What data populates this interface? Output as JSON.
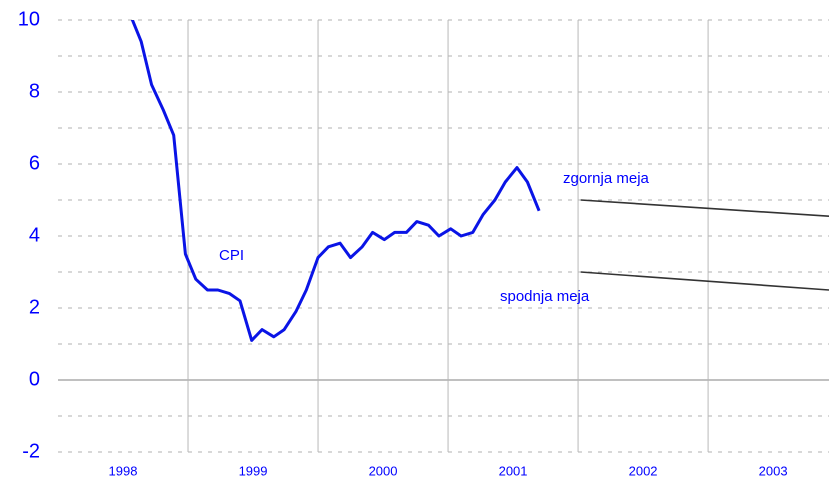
{
  "chart_data": {
    "type": "line",
    "xlim": [
      1998,
      2003.93
    ],
    "ylim": [
      -2,
      10
    ],
    "yticks": [
      -2,
      0,
      2,
      4,
      6,
      8,
      10
    ],
    "yminorticks": [
      -1,
      1,
      3,
      5,
      7,
      9
    ],
    "xgrid": [
      1999,
      2000,
      2001,
      2002,
      2003
    ],
    "xticks": [
      {
        "value": 1998.5,
        "label": "1998"
      },
      {
        "value": 1999.5,
        "label": "1999"
      },
      {
        "value": 2000.5,
        "label": "2000"
      },
      {
        "value": 2001.5,
        "label": "2001"
      },
      {
        "value": 2002.5,
        "label": "2002"
      },
      {
        "value": 2003.5,
        "label": "2003"
      }
    ],
    "annotations": [
      "CPI",
      "zgornja meja",
      "spodnja meja"
    ],
    "series": [
      {
        "name": "CPI",
        "color": "#0a14e6",
        "x": [
          1998.55,
          1998.64,
          1998.72,
          1998.81,
          1998.89,
          1998.98,
          1999.06,
          1999.15,
          1999.23,
          1999.32,
          1999.4,
          1999.49,
          1999.57,
          1999.66,
          1999.74,
          1999.83,
          1999.91,
          2000.0,
          2000.08,
          2000.17,
          2000.25,
          2000.34,
          2000.42,
          2000.51,
          2000.59,
          2000.68,
          2000.76,
          2000.85,
          2000.93,
          2001.02,
          2001.1,
          2001.19,
          2001.27,
          2001.36,
          2001.44,
          2001.53,
          2001.61,
          2001.7
        ],
        "values": [
          10.2,
          9.4,
          8.2,
          7.5,
          6.8,
          3.5,
          2.8,
          2.5,
          2.5,
          2.4,
          2.2,
          1.1,
          1.4,
          1.2,
          1.4,
          1.9,
          2.5,
          3.4,
          3.7,
          3.8,
          3.4,
          3.7,
          4.1,
          3.9,
          4.1,
          4.1,
          4.4,
          4.3,
          4.0,
          4.2,
          4.0,
          4.1,
          4.6,
          5.0,
          5.5,
          5.9,
          5.5,
          4.7
        ]
      },
      {
        "name": "zgornja meja",
        "color": "#333333",
        "x": [
          2002.02,
          2003.93
        ],
        "values": [
          5.0,
          4.55
        ]
      },
      {
        "name": "spodnja meja",
        "color": "#333333",
        "x": [
          2002.02,
          2003.93
        ],
        "values": [
          3.0,
          2.5
        ]
      }
    ]
  }
}
